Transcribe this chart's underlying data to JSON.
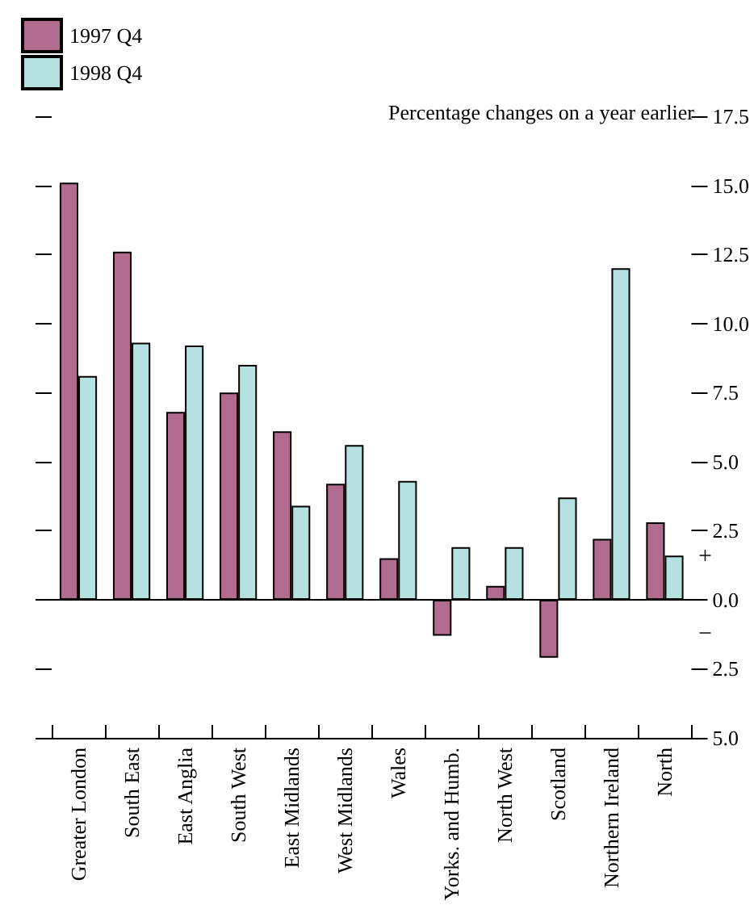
{
  "chart_data": {
    "type": "bar",
    "subtitle": "Percentage changes on a year earlier",
    "categories": [
      "Greater London",
      "South East",
      "East Anglia",
      "South West",
      "East Midlands",
      "West Midlands",
      "Wales",
      "Yorks. and Humb.",
      "North West",
      "Scotland",
      "Northern Ireland",
      "North"
    ],
    "series": [
      {
        "name": "1997 Q4",
        "color": "#b06b8e",
        "values": [
          15.1,
          12.6,
          6.8,
          7.5,
          6.1,
          4.2,
          1.5,
          -1.3,
          0.5,
          -2.1,
          2.2,
          2.8
        ]
      },
      {
        "name": "1998 Q4",
        "color": "#b5e1e1",
        "values": [
          8.1,
          9.3,
          9.2,
          8.5,
          3.4,
          5.6,
          4.3,
          1.9,
          1.9,
          3.7,
          12.0,
          1.6
        ]
      }
    ],
    "ylim": [
      -5,
      17.5
    ],
    "yticks": [
      {
        "value": -5,
        "label": "5.0"
      },
      {
        "value": -2.5,
        "label": "2.5"
      },
      {
        "value": 0,
        "label": "0.0"
      },
      {
        "value": 2.5,
        "label": "2.5"
      },
      {
        "value": 5,
        "label": "5.0"
      },
      {
        "value": 7.5,
        "label": "7.5"
      },
      {
        "value": 10,
        "label": "10.0"
      },
      {
        "value": 12.5,
        "label": "12.5"
      },
      {
        "value": 15,
        "label": "15.0"
      },
      {
        "value": 17.5,
        "label": "17.5"
      }
    ],
    "annotations": [
      "+",
      "−"
    ],
    "legend": "top left"
  }
}
